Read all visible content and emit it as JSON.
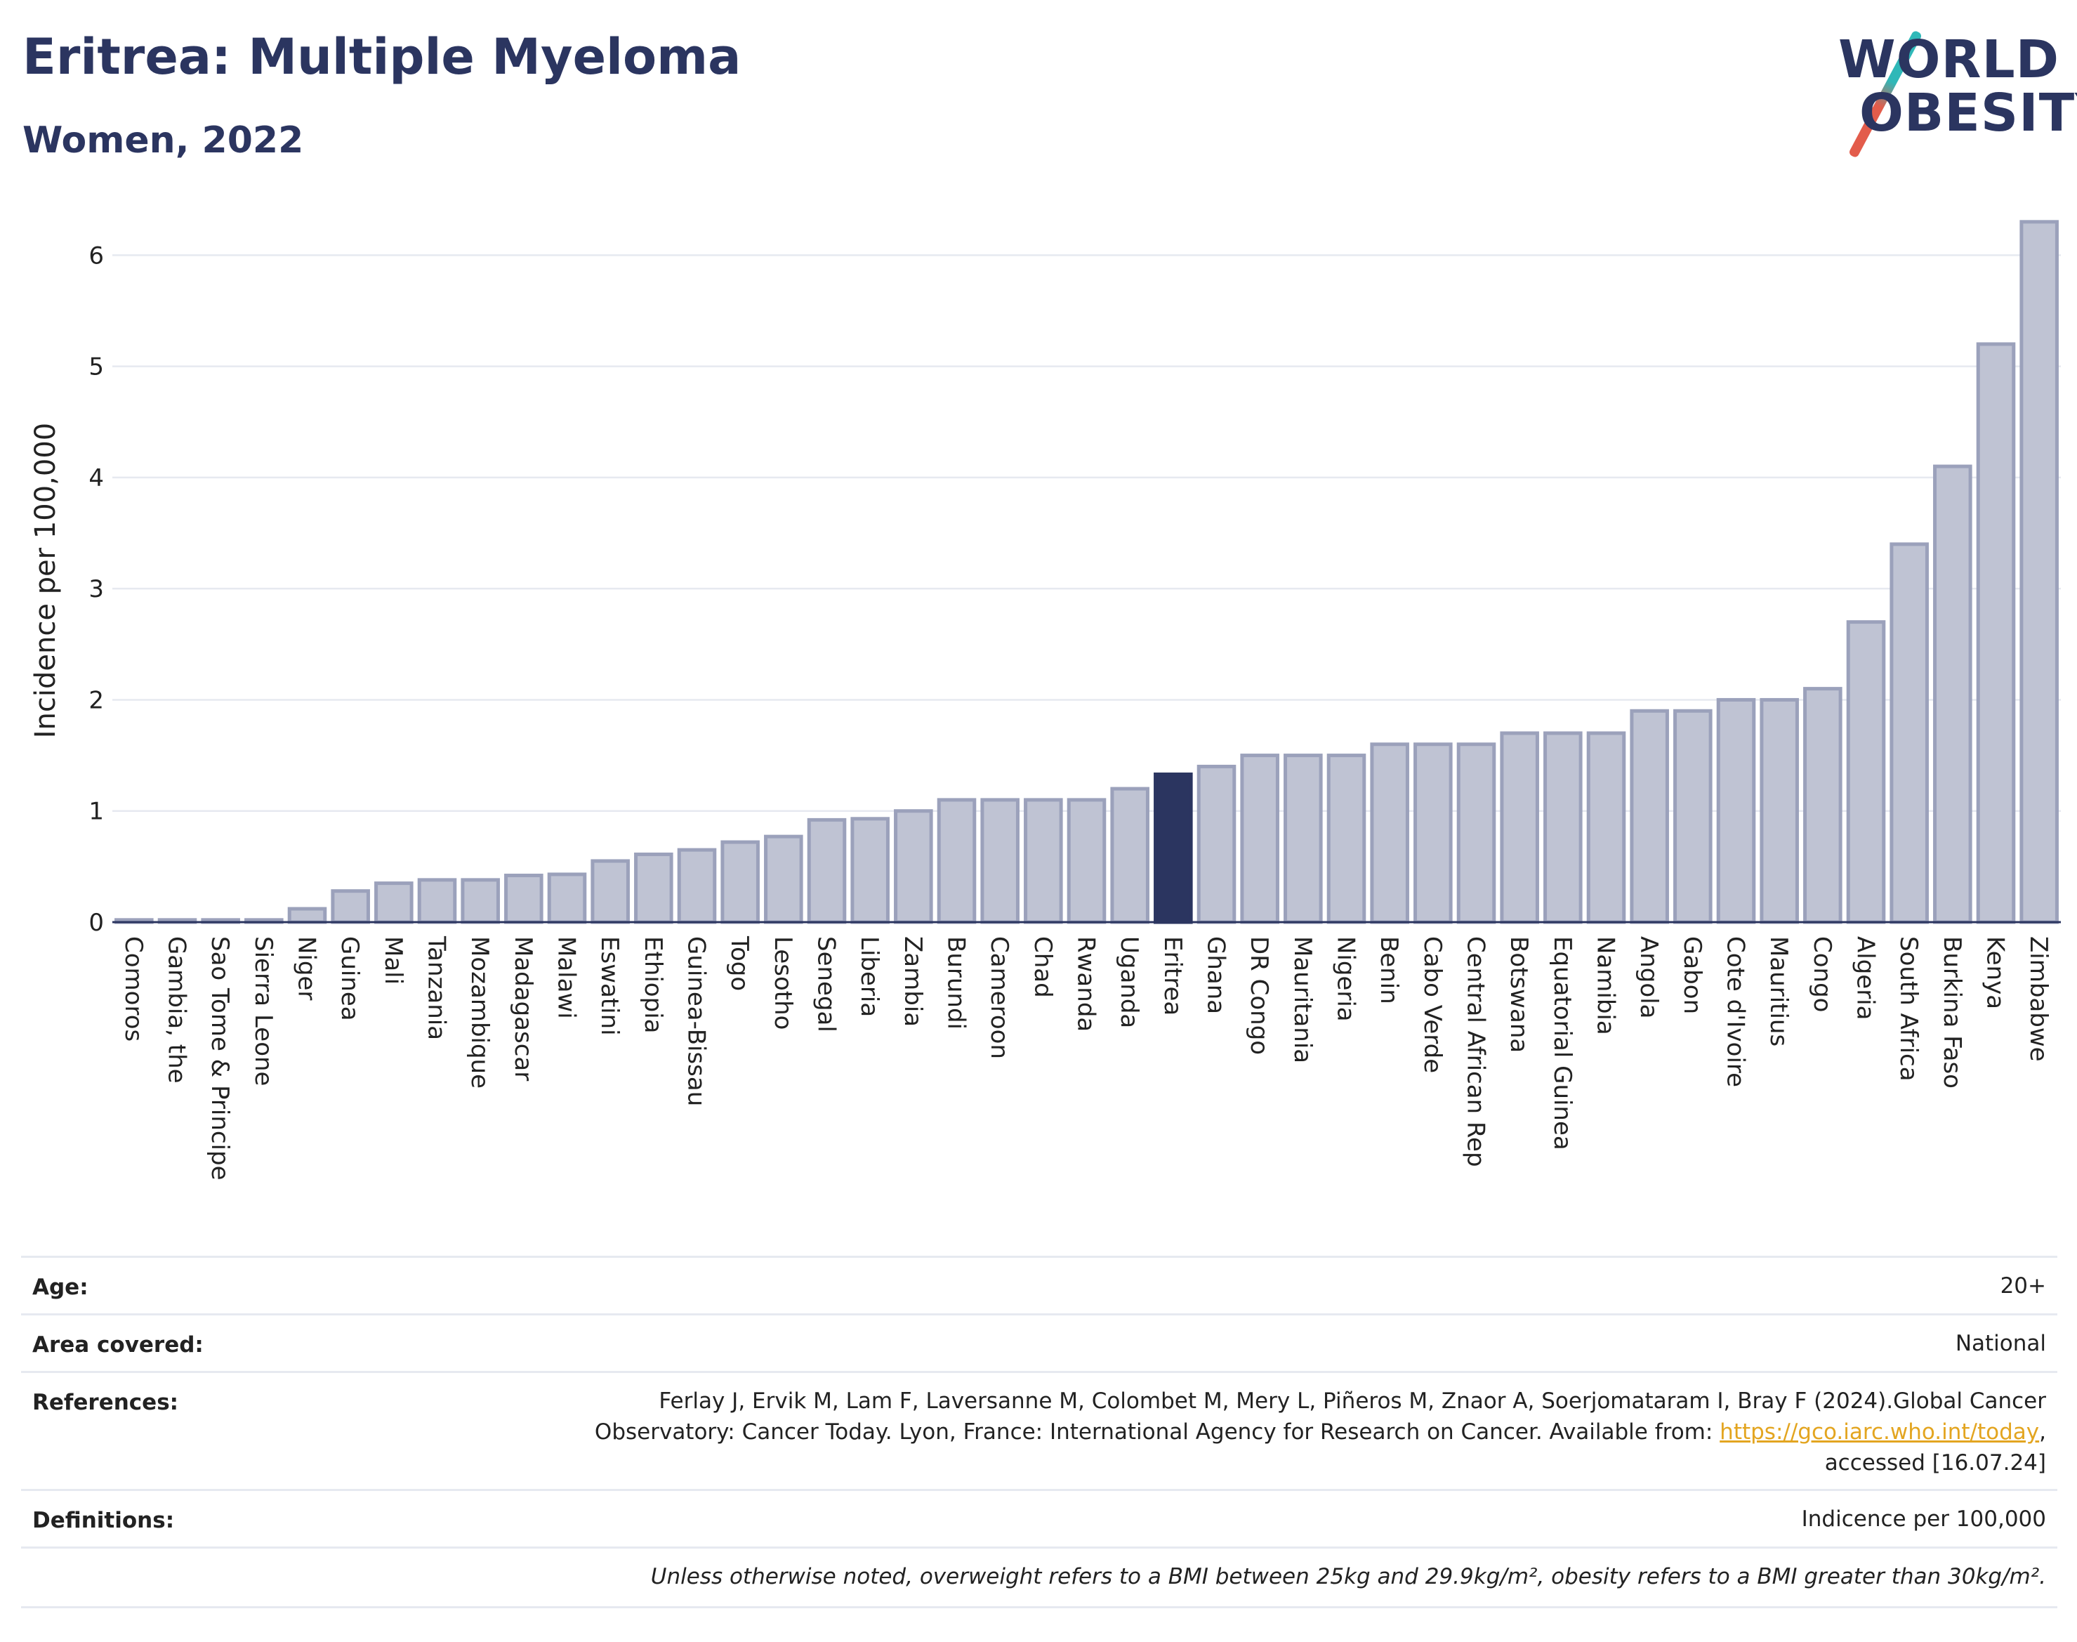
{
  "header": {
    "title": "Eritrea: Multiple Myeloma",
    "subtitle": "Women, 2022"
  },
  "logo": {
    "line1": "WORLD",
    "line2": "OBESITY"
  },
  "colors": {
    "bar_default": "#bfc3d3",
    "bar_border": "#9ba1bb",
    "bar_highlight": "#2b3560",
    "title": "#2b3560",
    "gridline": "#e6e9f0"
  },
  "chart_data": {
    "type": "bar",
    "title": "Eritrea: Multiple Myeloma",
    "subtitle": "Women, 2022",
    "xlabel": "",
    "ylabel": "Incidence per 100,000",
    "ylim": [
      0,
      6.4
    ],
    "yticks": [
      0,
      1,
      2,
      3,
      4,
      5,
      6
    ],
    "grid": true,
    "highlight": "Eritrea",
    "categories": [
      "Comoros",
      "Gambia, the",
      "Sao Tome & Principe",
      "Sierra Leone",
      "Niger",
      "Guinea",
      "Mali",
      "Tanzania",
      "Mozambique",
      "Madagascar",
      "Malawi",
      "Eswatini",
      "Ethiopia",
      "Guinea-Bissau",
      "Togo",
      "Lesotho",
      "Senegal",
      "Liberia",
      "Zambia",
      "Burundi",
      "Cameroon",
      "Chad",
      "Rwanda",
      "Uganda",
      "Eritrea",
      "Ghana",
      "DR Congo",
      "Mauritania",
      "Nigeria",
      "Benin",
      "Cabo Verde",
      "Central African Rep",
      "Botswana",
      "Equatorial Guinea",
      "Namibia",
      "Angola",
      "Gabon",
      "Cote d'Ivoire",
      "Mauritius",
      "Congo",
      "Algeria",
      "South Africa",
      "Burkina Faso",
      "Kenya",
      "Zimbabwe"
    ],
    "values": [
      0.02,
      0.02,
      0.02,
      0.02,
      0.12,
      0.28,
      0.35,
      0.38,
      0.38,
      0.42,
      0.43,
      0.55,
      0.61,
      0.65,
      0.72,
      0.77,
      0.92,
      0.93,
      1.0,
      1.1,
      1.1,
      1.1,
      1.1,
      1.2,
      1.33,
      1.4,
      1.5,
      1.5,
      1.5,
      1.6,
      1.6,
      1.6,
      1.7,
      1.7,
      1.7,
      1.9,
      1.9,
      2.0,
      2.0,
      2.1,
      2.7,
      3.4,
      4.1,
      5.2,
      6.3
    ]
  },
  "info": {
    "age_label": "Age:",
    "age_value": "20+",
    "area_label": "Area covered:",
    "area_value": "National",
    "references_label": "References:",
    "references_line1": "Ferlay J, Ervik M, Lam F, Laversanne M, Colombet M, Mery L, Piñeros M, Znaor A, Soerjomataram I, Bray F (2024).Global Cancer",
    "references_line2_prefix": "Observatory: Cancer Today. Lyon, France: International Agency for Research on Cancer. Available from: ",
    "references_link": "https://gco.iarc.who.int/today",
    "references_line2_suffix": ",",
    "references_line3": "accessed [16.07.24]",
    "definitions_label": "Definitions:",
    "definitions_value": "Indicence per 100,000",
    "note": "Unless otherwise noted, overweight refers to a BMI between 25kg and 29.9kg/m², obesity refers to a BMI greater than 30kg/m²."
  }
}
